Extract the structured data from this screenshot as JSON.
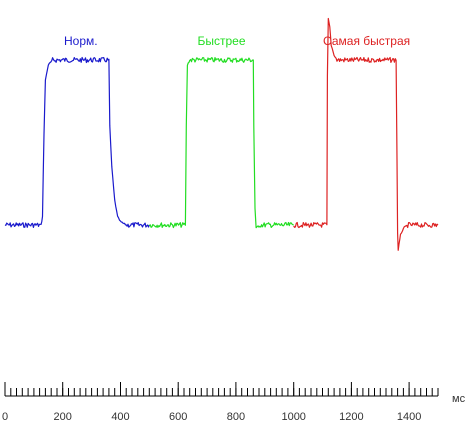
{
  "chart_data": {
    "type": "line",
    "title": "",
    "xlabel": "",
    "ylabel": "",
    "x_unit": "мс",
    "xlim": [
      0,
      1500
    ],
    "x_ticks": [
      0,
      200,
      400,
      600,
      800,
      1000,
      1200,
      1400
    ],
    "x_minor_step": 20,
    "ylim": [
      -0.2,
      1.25
    ],
    "y_axis_shown": false,
    "grid": false,
    "legend": "none",
    "series": [
      {
        "name": "Норм.",
        "color": "#1a1acc",
        "x": [
          0,
          125,
          130,
          135,
          140,
          150,
          165,
          180,
          360,
          363,
          370,
          380,
          390,
          400,
          420,
          500
        ],
        "y": [
          0,
          0,
          0.05,
          0.55,
          0.88,
          0.97,
          1.0,
          1.0,
          1.0,
          0.6,
          0.35,
          0.15,
          0.05,
          0.02,
          0,
          0
        ]
      },
      {
        "name": "Быстрее",
        "color": "#22dd22",
        "x": [
          500,
          625,
          628,
          632,
          640,
          860,
          862,
          866,
          870,
          880,
          1000
        ],
        "y": [
          0,
          0,
          0.6,
          0.97,
          1.0,
          1.0,
          0.6,
          0.1,
          -0.02,
          0,
          0
        ]
      },
      {
        "name": "Самая быстрая",
        "color": "#dd2222",
        "x": [
          1000,
          1115,
          1117,
          1120,
          1125,
          1130,
          1140,
          1150,
          1355,
          1358,
          1360,
          1362,
          1365,
          1370,
          1380,
          1395,
          1500
        ],
        "y": [
          0,
          0,
          0.9,
          1.25,
          1.2,
          1.09,
          1.03,
          1.0,
          1.0,
          0.4,
          -0.05,
          -0.15,
          -0.12,
          -0.06,
          -0.02,
          0,
          0
        ]
      }
    ]
  }
}
